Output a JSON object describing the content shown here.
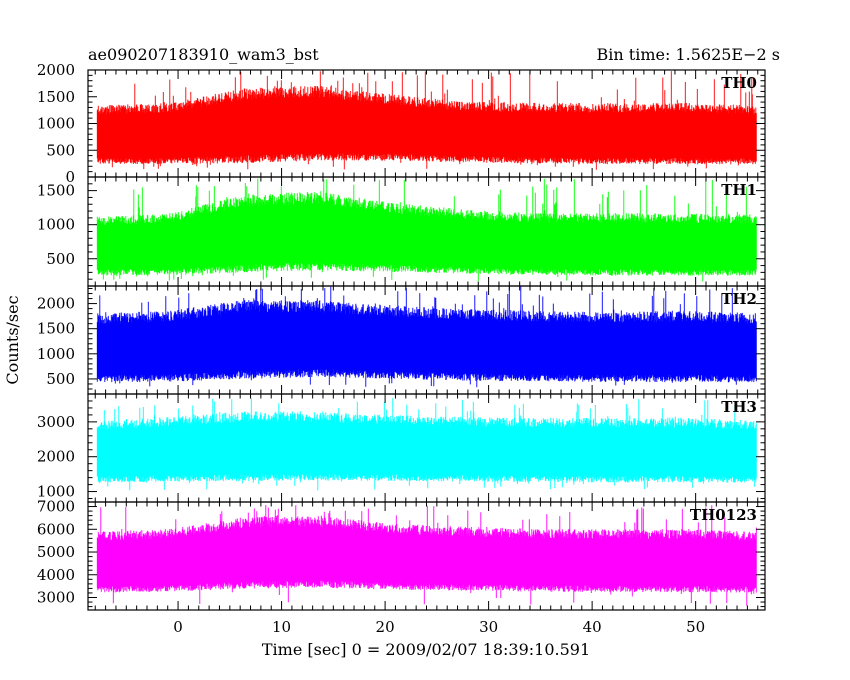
{
  "header": {
    "title": "ae090207183910_wam3_bst",
    "bin_time": "Bin time: 1.5625E−2 s"
  },
  "chart_data": {
    "type": "line",
    "title": "ae090207183910_wam3_bst",
    "subtitle": "Bin time: 1.5625E−2 s",
    "xlabel": "Time [sec] 0 = 2009/02/07 18:39:10.591",
    "ylabel": "Counts/sec",
    "xlim": [
      -8.7,
      56.7
    ],
    "x_data_range": [
      -7.8,
      55.9
    ],
    "x_ticks": [
      0,
      10,
      20,
      30,
      40,
      50
    ],
    "x_tick_labels": [
      "0",
      "10",
      "20",
      "30",
      "40",
      "50"
    ],
    "grid": false,
    "panels": [
      {
        "name": "TH0",
        "color": "#ff0000",
        "ylim": [
          0,
          2000
        ],
        "y_ticks": [
          0,
          500,
          1000,
          1500,
          2000
        ],
        "y_tick_labels": [
          "0",
          "500",
          "1000",
          "1500",
          "2000"
        ],
        "band_min": [
          300,
          300,
          330,
          380,
          370,
          330,
          310,
          300,
          300,
          290
        ],
        "band_max": [
          1250,
          1300,
          1550,
          1600,
          1450,
          1320,
          1300,
          1290,
          1300,
          1250
        ],
        "spike_min": 120,
        "spike_max": 2000
      },
      {
        "name": "TH1",
        "color": "#00ff00",
        "ylim": [
          100,
          1700
        ],
        "y_ticks": [
          500,
          1000,
          1500
        ],
        "y_tick_labels": [
          "500",
          "1000",
          "1500"
        ],
        "band_min": [
          300,
          310,
          360,
          390,
          360,
          330,
          310,
          300,
          300,
          300
        ],
        "band_max": [
          1050,
          1100,
          1350,
          1400,
          1250,
          1150,
          1100,
          1100,
          1100,
          1080
        ],
        "spike_min": 150,
        "spike_max": 1700
      },
      {
        "name": "TH2",
        "color": "#0000ff",
        "ylim": [
          200,
          2350
        ],
        "y_ticks": [
          500,
          1000,
          1500,
          2000
        ],
        "y_tick_labels": [
          "500",
          "1000",
          "1500",
          "2000"
        ],
        "band_min": [
          500,
          520,
          580,
          620,
          580,
          540,
          520,
          510,
          510,
          500
        ],
        "band_max": [
          1700,
          1750,
          1950,
          1950,
          1850,
          1780,
          1750,
          1720,
          1750,
          1700
        ],
        "spike_min": 330,
        "spike_max": 2350
      },
      {
        "name": "TH3",
        "color": "#00ffff",
        "ylim": [
          700,
          3800
        ],
        "y_ticks": [
          1000,
          2000,
          3000
        ],
        "y_tick_labels": [
          "1000",
          "2000",
          "3000"
        ],
        "band_min": [
          1350,
          1380,
          1400,
          1420,
          1400,
          1380,
          1370,
          1360,
          1360,
          1350
        ],
        "band_max": [
          2900,
          3000,
          3150,
          3150,
          3050,
          3000,
          2980,
          2960,
          2980,
          2900
        ],
        "spike_min": 1000,
        "spike_max": 3700
      },
      {
        "name": "TH0123",
        "color": "#ff00ff",
        "ylim": [
          2450,
          7200
        ],
        "y_ticks": [
          3000,
          4000,
          5000,
          6000,
          7000
        ],
        "y_tick_labels": [
          "3000",
          "4000",
          "5000",
          "6000",
          "7000"
        ],
        "band_min": [
          3350,
          3400,
          3550,
          3600,
          3500,
          3450,
          3400,
          3380,
          3380,
          3350
        ],
        "band_max": [
          5700,
          5800,
          6300,
          6350,
          6050,
          5900,
          5800,
          5780,
          5800,
          5700
        ],
        "spike_min": 2600,
        "spike_max": 7100
      }
    ]
  }
}
